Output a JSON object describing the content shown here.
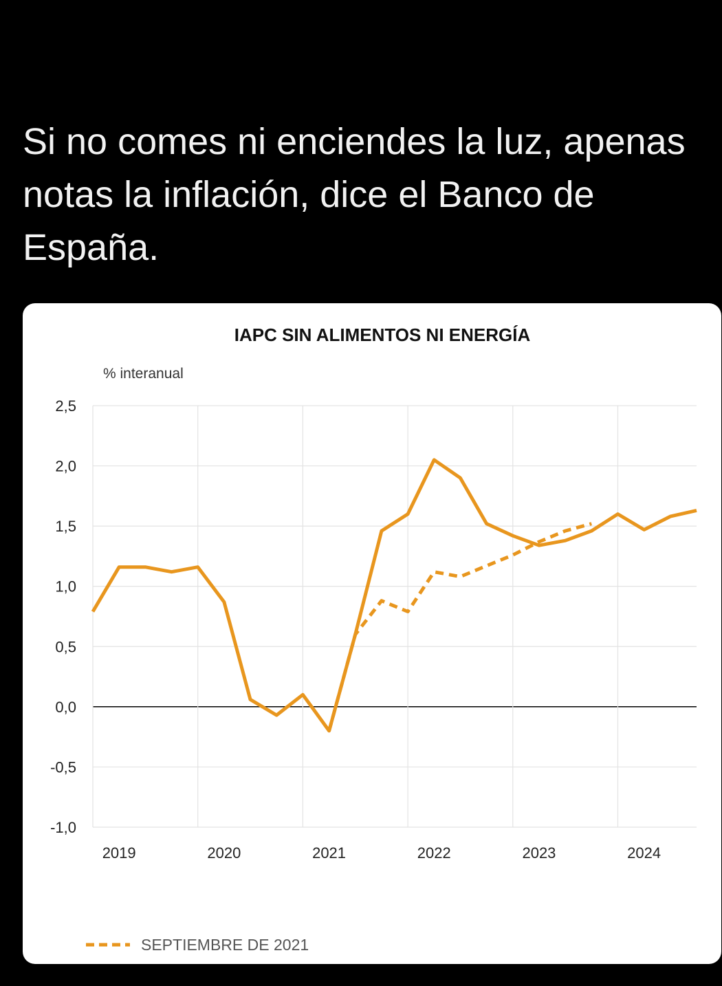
{
  "tweet": {
    "text": "Si no comes ni enciendes la luz, apenas notas la inflación, dice el Banco de España."
  },
  "chart_data": {
    "type": "line",
    "title": "IAPC SIN ALIMENTOS NI ENERGÍA",
    "ylabel": "% interanual",
    "xlabel": "",
    "ylim": [
      -1.0,
      2.5
    ],
    "yticks": [
      2.5,
      2.0,
      1.5,
      1.0,
      0.5,
      0.0,
      -0.5,
      -1.0
    ],
    "ytick_labels": [
      "2,5",
      "2,0",
      "1,5",
      "1,0",
      "0,5",
      "0,0",
      "-0,5",
      "-1,0"
    ],
    "xlim": [
      2019.0,
      2024.75
    ],
    "xtick_labels": [
      "2019",
      "2020",
      "2021",
      "2022",
      "2023",
      "2024"
    ],
    "grid": true,
    "legend_position": "bottom-left",
    "color": "#E8961E",
    "series": [
      {
        "name": "",
        "style": "solid",
        "x": [
          2019.0,
          2019.25,
          2019.5,
          2019.75,
          2020.0,
          2020.25,
          2020.5,
          2020.75,
          2021.0,
          2021.25,
          2021.5,
          2021.75,
          2022.0,
          2022.25,
          2022.5,
          2022.75,
          2023.0,
          2023.25,
          2023.5,
          2023.75,
          2024.0,
          2024.25,
          2024.5,
          2024.75
        ],
        "values": [
          0.79,
          1.16,
          1.16,
          1.12,
          1.16,
          0.87,
          0.06,
          -0.07,
          0.1,
          -0.2,
          0.6,
          1.46,
          1.6,
          2.05,
          1.9,
          1.52,
          1.42,
          1.34,
          1.38,
          1.46,
          1.6,
          1.47,
          1.58,
          1.63
        ]
      },
      {
        "name": "SEPTIEMBRE DE 2021",
        "style": "dashed",
        "x": [
          2021.25,
          2021.5,
          2021.75,
          2022.0,
          2022.25,
          2022.5,
          2022.75,
          2023.0,
          2023.25,
          2023.5,
          2023.75
        ],
        "values": [
          -0.2,
          0.6,
          0.88,
          0.79,
          1.12,
          1.08,
          1.17,
          1.26,
          1.37,
          1.46,
          1.52
        ]
      }
    ]
  }
}
